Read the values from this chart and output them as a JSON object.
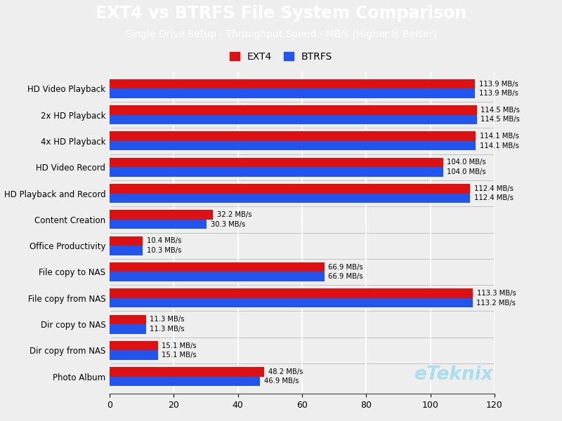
{
  "title": "EXT4 vs BTRFS File System Comparison",
  "subtitle": "Single Drive Setup - Throughput Speed - MB/s (Higher Is Better)",
  "title_bg_color": "#1eaadf",
  "plot_bg_color": "#eeeeee",
  "categories": [
    "HD Video Playback",
    "2x HD Playback",
    "4x HD Playback",
    "HD Video Record",
    "HD Playback and Record",
    "Content Creation",
    "Office Productivity",
    "File copy to NAS",
    "File copy from NAS",
    "Dir copy to NAS",
    "Dir copy from NAS",
    "Photo Album"
  ],
  "ext4_values": [
    113.9,
    114.5,
    114.1,
    104.0,
    112.4,
    32.2,
    10.4,
    66.9,
    113.3,
    11.3,
    15.1,
    48.2
  ],
  "btrfs_values": [
    113.9,
    114.5,
    114.1,
    104.0,
    112.4,
    30.3,
    10.3,
    66.9,
    113.2,
    11.3,
    15.1,
    46.9
  ],
  "ext4_color": "#dd1111",
  "btrfs_color": "#2255ee",
  "xlim": [
    0,
    120
  ],
  "xtick_step": 20,
  "watermark": "eTeknix",
  "watermark_color": "#aaddee",
  "bar_height": 0.36,
  "label_fontsize": 7.2,
  "legend_fontsize": 10,
  "title_fontsize": 17,
  "subtitle_fontsize": 10,
  "category_fontsize": 8.5,
  "axis_fontsize": 9
}
